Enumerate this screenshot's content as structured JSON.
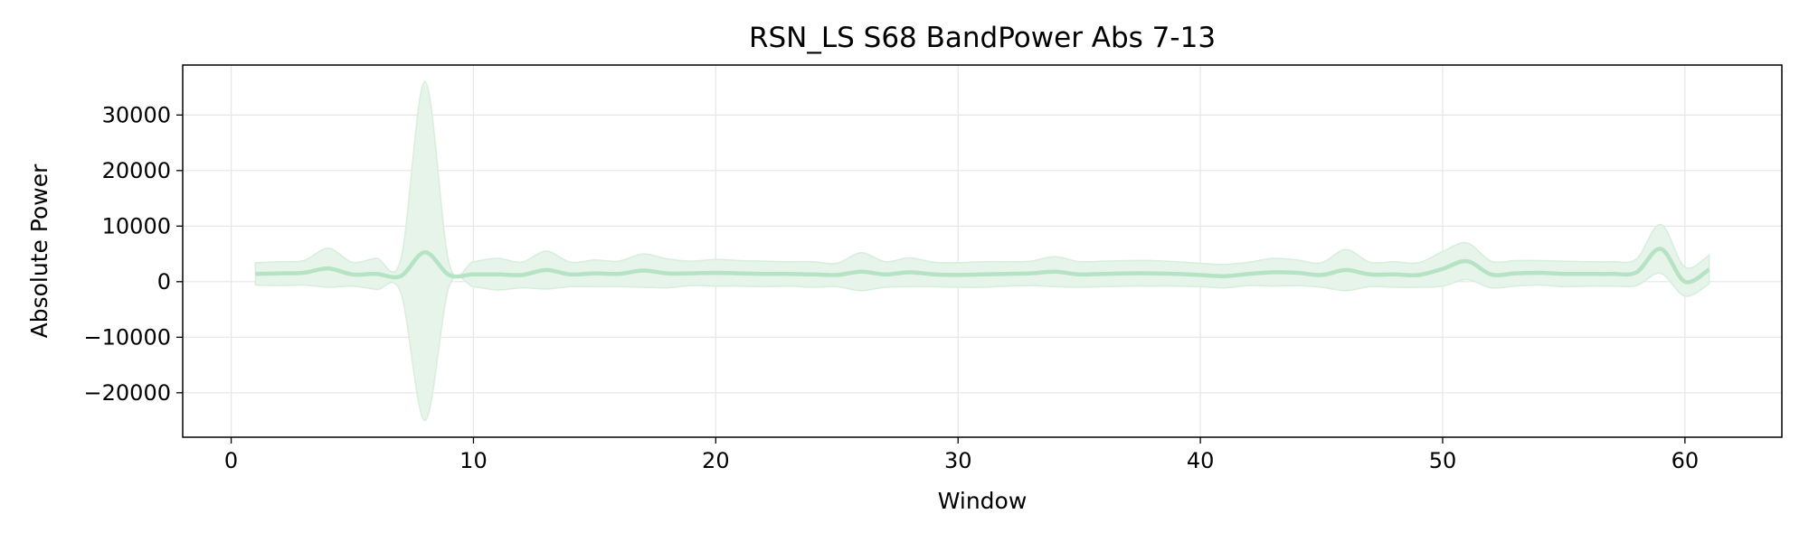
{
  "chart_data": {
    "type": "line",
    "title": "RSN_LS S68 BandPower Abs 7-13",
    "xlabel": "Window",
    "ylabel": "Absolute Power",
    "xlim": [
      -2,
      64
    ],
    "ylim": [
      -28000,
      39000
    ],
    "xticks": [
      0,
      10,
      20,
      30,
      40,
      50,
      60
    ],
    "yticks": [
      -20000,
      -10000,
      0,
      10000,
      20000,
      30000
    ],
    "ytick_labels": [
      "−20000",
      "−10000",
      "0",
      "10000",
      "20000",
      "30000"
    ],
    "grid": true,
    "legend": "none",
    "series": [
      {
        "x": [
          1,
          2,
          3,
          4,
          5,
          6,
          7,
          8,
          9,
          10,
          11,
          12,
          13,
          14,
          15,
          16,
          17,
          18,
          19,
          20,
          21,
          22,
          23,
          24,
          25,
          26,
          27,
          28,
          29,
          30,
          31,
          32,
          33,
          34,
          35,
          36,
          37,
          38,
          39,
          40,
          41,
          42,
          43,
          44,
          45,
          46,
          47,
          48,
          49,
          50,
          51,
          52,
          53,
          54,
          55,
          56,
          57,
          58,
          59,
          60,
          61
        ],
        "mean": [
          1400,
          1500,
          1600,
          2400,
          1300,
          1400,
          1000,
          5300,
          1200,
          1300,
          1300,
          1200,
          2100,
          1300,
          1500,
          1400,
          2000,
          1500,
          1500,
          1600,
          1500,
          1400,
          1400,
          1300,
          1200,
          1800,
          1300,
          1700,
          1300,
          1200,
          1300,
          1400,
          1500,
          1800,
          1300,
          1400,
          1500,
          1500,
          1400,
          1200,
          1000,
          1400,
          1700,
          1600,
          1200,
          2100,
          1300,
          1300,
          1200,
          2300,
          3700,
          1300,
          1500,
          1600,
          1400,
          1400,
          1400,
          1700,
          5900,
          0,
          2200
        ],
        "upper": [
          3400,
          3600,
          3800,
          6000,
          3500,
          4200,
          4000,
          36000,
          3200,
          3600,
          4200,
          3500,
          5500,
          3500,
          3900,
          3700,
          5000,
          4100,
          3700,
          4000,
          3800,
          3700,
          3600,
          3600,
          3300,
          5200,
          3600,
          4300,
          3500,
          3400,
          3600,
          3600,
          3700,
          4500,
          3600,
          3700,
          3800,
          3800,
          3600,
          3300,
          3100,
          3500,
          4200,
          3900,
          3400,
          5800,
          3500,
          3600,
          3400,
          5400,
          7000,
          3700,
          3800,
          3800,
          3700,
          3600,
          3600,
          4100,
          10300,
          2600,
          4800
        ],
        "lower": [
          -600,
          -700,
          -600,
          -1000,
          -800,
          -1400,
          -2000,
          -25000,
          -800,
          -900,
          -1500,
          -1100,
          -1300,
          -900,
          -900,
          -900,
          -1000,
          -1100,
          -700,
          -800,
          -800,
          -900,
          -800,
          -1000,
          -900,
          -1600,
          -1000,
          -900,
          -900,
          -1000,
          -1000,
          -800,
          -700,
          -900,
          -1000,
          -900,
          -800,
          -800,
          -800,
          -900,
          -1100,
          -700,
          -800,
          -700,
          -1000,
          -1600,
          -900,
          -1000,
          -1000,
          -800,
          400,
          -1100,
          -800,
          -600,
          -900,
          -800,
          -800,
          -700,
          1500,
          -2600,
          -400
        ]
      }
    ],
    "colors": {
      "line": "#b6e3c4",
      "band": "#e6f4ea",
      "band_edge": "#d7eedd",
      "grid": "#e6e6e6",
      "axis": "#000000"
    }
  }
}
